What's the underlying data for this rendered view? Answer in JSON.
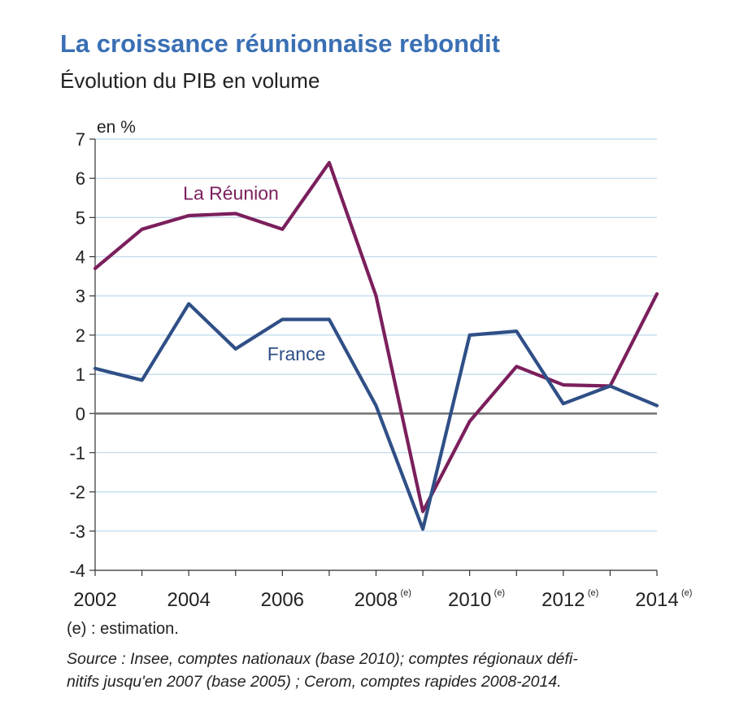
{
  "title": "La croissance réunionnaise rebondit",
  "subtitle": "Évolution du PIB en volume",
  "note": "(e) : estimation.",
  "source_lines": [
    "Source : Insee, comptes nationaux (base 2010); comptes régionaux défi-",
    "nitifs jusqu'en 2007 (base 2005) ; Cerom, comptes rapides 2008-2014."
  ],
  "chart_data": {
    "type": "line",
    "ylabel": "en %",
    "ylim": [
      -4,
      7
    ],
    "yticks": [
      "7",
      "6",
      "5",
      "4",
      "3",
      "2",
      "1",
      "0",
      "-1",
      "-2",
      "-3",
      "-4"
    ],
    "x": [
      2002,
      2003,
      2004,
      2005,
      2006,
      2007,
      2008,
      2009,
      2010,
      2011,
      2012,
      2013,
      2014
    ],
    "xlim": [
      2002,
      2014
    ],
    "xtick_labels": [
      {
        "x": 2002,
        "text": "2002",
        "sup": ""
      },
      {
        "x": 2004,
        "text": "2004",
        "sup": ""
      },
      {
        "x": 2006,
        "text": "2006",
        "sup": ""
      },
      {
        "x": 2008,
        "text": "2008",
        "sup": "(e)"
      },
      {
        "x": 2010,
        "text": "2010",
        "sup": "(e)"
      },
      {
        "x": 2012,
        "text": "2012",
        "sup": "(e)"
      },
      {
        "x": 2014,
        "text": "2014",
        "sup": "(e)"
      }
    ],
    "grid": true,
    "zero_line": true,
    "series": [
      {
        "name": "La Réunion",
        "color": "#7b1f5c",
        "values": [
          3.7,
          4.7,
          5.05,
          5.1,
          4.7,
          6.4,
          3.0,
          -2.5,
          -0.2,
          1.2,
          0.73,
          0.7,
          3.05
        ]
      },
      {
        "name": "France",
        "color": "#2f4f86",
        "values": [
          1.15,
          0.85,
          2.8,
          1.65,
          2.4,
          2.4,
          0.2,
          -2.95,
          2.0,
          2.1,
          0.25,
          0.7,
          0.2
        ]
      }
    ],
    "colors": {
      "grid": "#bcd8ee",
      "axis": "#333333",
      "zero": "#777777"
    }
  }
}
